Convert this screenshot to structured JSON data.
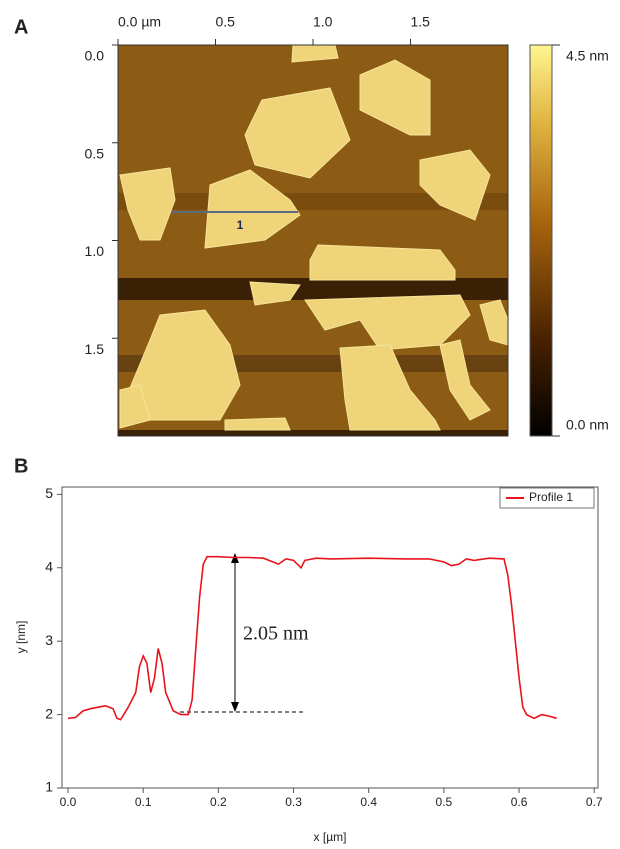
{
  "chart_data": [
    {
      "type": "image",
      "panel": "A",
      "xlim": [
        0,
        2
      ],
      "xticks": [
        {
          "value": 0,
          "label": "0.0 µm"
        },
        0.5,
        {
          "value": 1,
          "label": "1.0"
        },
        1.5
      ],
      "ylim": [
        0,
        2
      ],
      "yticks": [
        {
          "value": 0,
          "label": "0.0"
        },
        0.5,
        {
          "value": 1,
          "label": "1.0"
        },
        1.5
      ],
      "clim": [
        0,
        4.5
      ],
      "cticks": [
        {
          "value": 4.5,
          "label": "4.5 nm"
        },
        {
          "value": 0,
          "label": "0.0 nm"
        }
      ],
      "profile_label": "1"
    },
    {
      "type": "line",
      "panel": "B",
      "xlabel": "x [µm]",
      "ylabel": "y [nm]",
      "annotation": "2.05 nm",
      "legend": "upper right",
      "x": [
        0.0,
        0.01,
        0.02,
        0.03,
        0.04,
        0.05,
        0.06,
        0.065,
        0.07,
        0.08,
        0.085,
        0.09,
        0.095,
        0.1,
        0.105,
        0.11,
        0.115,
        0.12,
        0.125,
        0.13,
        0.14,
        0.15,
        0.16,
        0.165,
        0.17,
        0.175,
        0.18,
        0.185,
        0.2,
        0.22,
        0.24,
        0.26,
        0.28,
        0.29,
        0.3,
        0.31,
        0.315,
        0.33,
        0.35,
        0.4,
        0.45,
        0.48,
        0.5,
        0.51,
        0.52,
        0.53,
        0.54,
        0.56,
        0.58,
        0.585,
        0.59,
        0.595,
        0.6,
        0.605,
        0.61,
        0.62,
        0.63,
        0.64,
        0.65
      ],
      "series": [
        {
          "name": "Profile 1",
          "color": "#e8141c",
          "values": [
            1.95,
            1.96,
            2.05,
            2.08,
            2.1,
            2.12,
            2.08,
            1.95,
            1.93,
            2.1,
            2.2,
            2.3,
            2.65,
            2.8,
            2.7,
            2.3,
            2.5,
            2.9,
            2.7,
            2.3,
            2.05,
            2.0,
            2.0,
            2.2,
            2.9,
            3.6,
            4.05,
            4.15,
            4.15,
            4.14,
            4.14,
            4.13,
            4.05,
            4.12,
            4.1,
            4.0,
            4.1,
            4.13,
            4.12,
            4.13,
            4.12,
            4.12,
            4.08,
            4.03,
            4.05,
            4.12,
            4.1,
            4.13,
            4.12,
            3.9,
            3.5,
            3.0,
            2.5,
            2.1,
            2.0,
            1.95,
            2.0,
            1.98,
            1.95
          ]
        }
      ],
      "xlim": [
        -0.008,
        0.705
      ],
      "xticks": [
        {
          "value": 0,
          "label": "0.0"
        },
        0.1,
        0.2,
        0.3,
        0.4,
        0.5,
        0.6,
        0.7
      ],
      "ylim": [
        1,
        5.1
      ],
      "yticks": [
        1,
        2,
        3,
        4,
        5
      ]
    }
  ]
}
